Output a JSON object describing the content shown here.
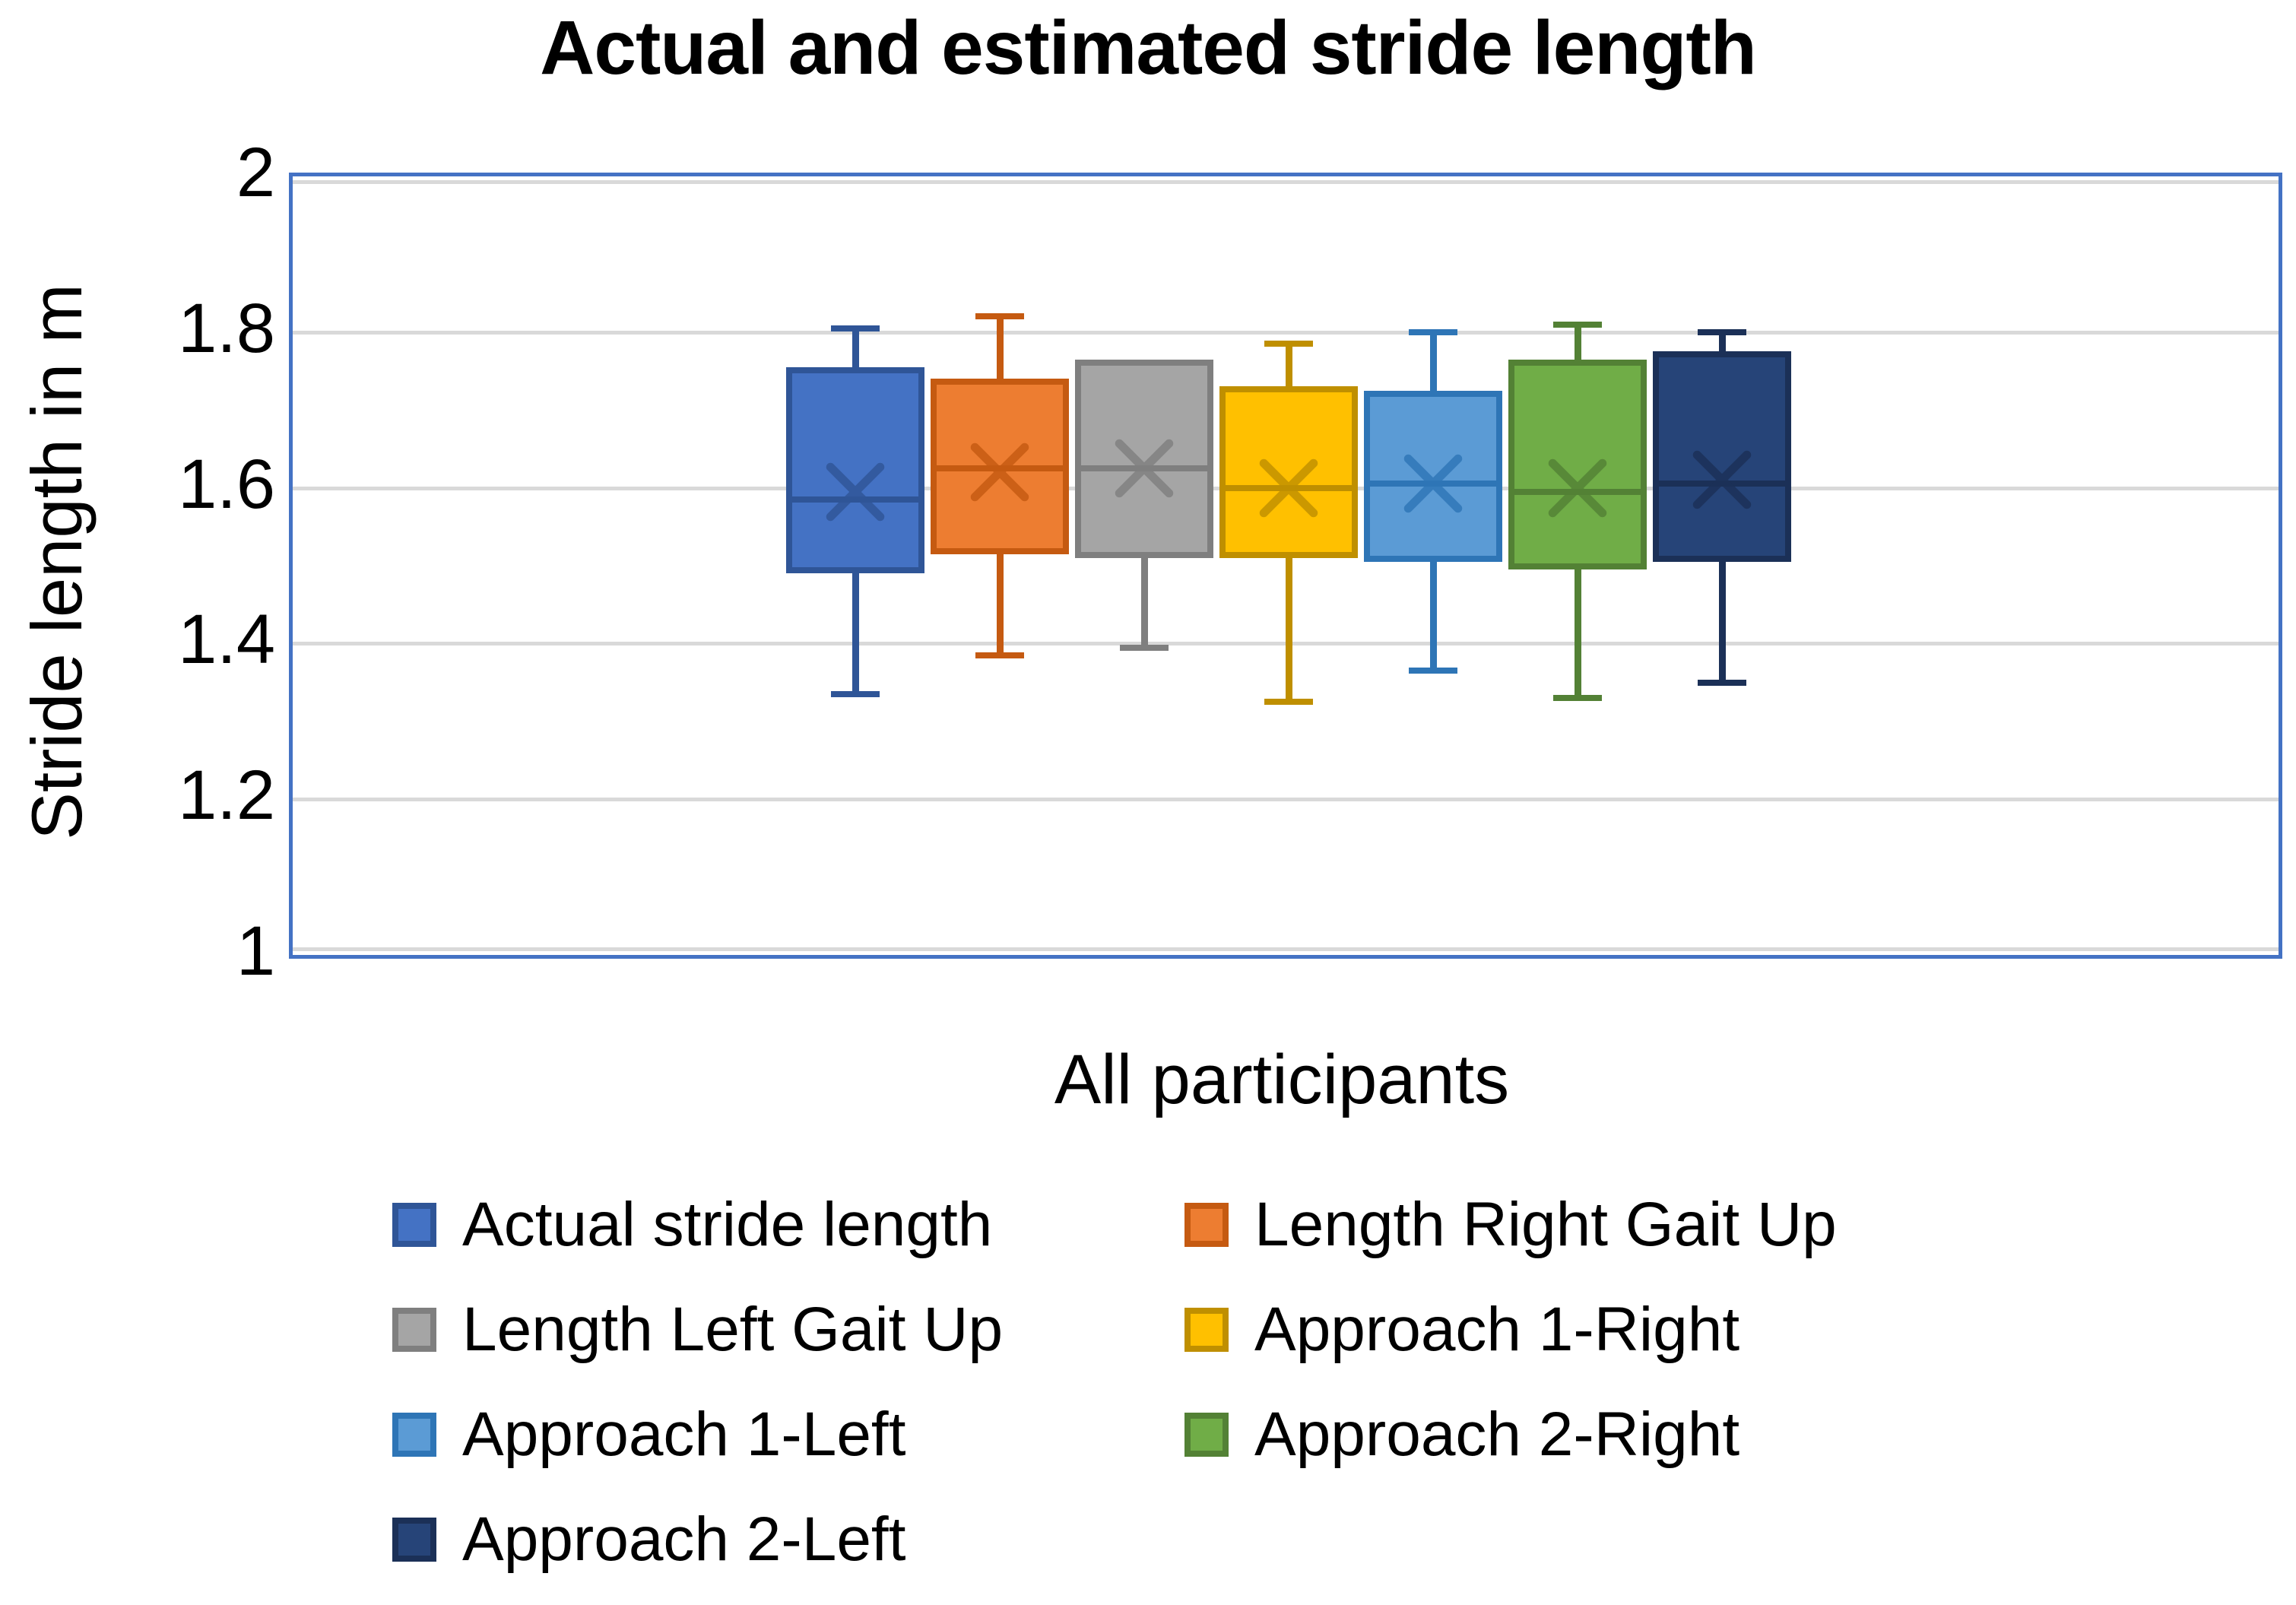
{
  "chart_data": {
    "type": "boxplot",
    "title": "Actual and estimated stride length",
    "xlabel": "All participants",
    "ylabel": "Stride length in m",
    "categories": [
      "All participants"
    ],
    "ylim": [
      1,
      2
    ],
    "grid": true,
    "legend_position": "bottom",
    "yticks": [
      {
        "value": 2,
        "label": "2"
      },
      {
        "value": 1.8,
        "label": "1.8"
      },
      {
        "value": 1.6,
        "label": "1.6"
      },
      {
        "value": 1.4,
        "label": "1.4"
      },
      {
        "value": 1.2,
        "label": "1.2"
      },
      {
        "value": 1,
        "label": "1"
      }
    ],
    "series": [
      {
        "name": "Actual stride length",
        "fill": "#4472C4",
        "line": "#2F5597",
        "whisker_low": 1.335,
        "q1": 1.49,
        "median": 1.585,
        "mean": 1.595,
        "q3": 1.755,
        "whisker_high": 1.805
      },
      {
        "name": "Length Right Gait Up",
        "fill": "#ED7D31",
        "line": "#C55A11",
        "whisker_low": 1.385,
        "q1": 1.515,
        "median": 1.625,
        "mean": 1.62,
        "q3": 1.74,
        "whisker_high": 1.82
      },
      {
        "name": "Length Left Gait Up",
        "fill": "#A5A5A5",
        "line": "#7F7F7F",
        "whisker_low": 1.395,
        "q1": 1.51,
        "median": 1.625,
        "mean": 1.625,
        "q3": 1.765,
        "whisker_high": 1.765
      },
      {
        "name": "Approach 1-Right",
        "fill": "#FFC000",
        "line": "#BF8F00",
        "whisker_low": 1.325,
        "q1": 1.51,
        "median": 1.6,
        "mean": 1.6,
        "q3": 1.73,
        "whisker_high": 1.785
      },
      {
        "name": "Approach 1-Left",
        "fill": "#5B9BD5",
        "line": "#2E75B6",
        "whisker_low": 1.365,
        "q1": 1.505,
        "median": 1.605,
        "mean": 1.605,
        "q3": 1.725,
        "whisker_high": 1.8
      },
      {
        "name": "Approach 2-Right",
        "fill": "#70AD47",
        "line": "#538135",
        "whisker_low": 1.33,
        "q1": 1.495,
        "median": 1.595,
        "mean": 1.6,
        "q3": 1.765,
        "whisker_high": 1.81
      },
      {
        "name": "Approach 2-Left",
        "fill": "#264478",
        "line": "#1B3057",
        "whisker_low": 1.35,
        "q1": 1.505,
        "median": 1.605,
        "mean": 1.61,
        "q3": 1.775,
        "whisker_high": 1.8
      }
    ],
    "colors": {
      "gridline": "#D9D9D9",
      "plot_border": "#4472C4",
      "text": "#000000",
      "background": "#FFFFFF"
    }
  }
}
